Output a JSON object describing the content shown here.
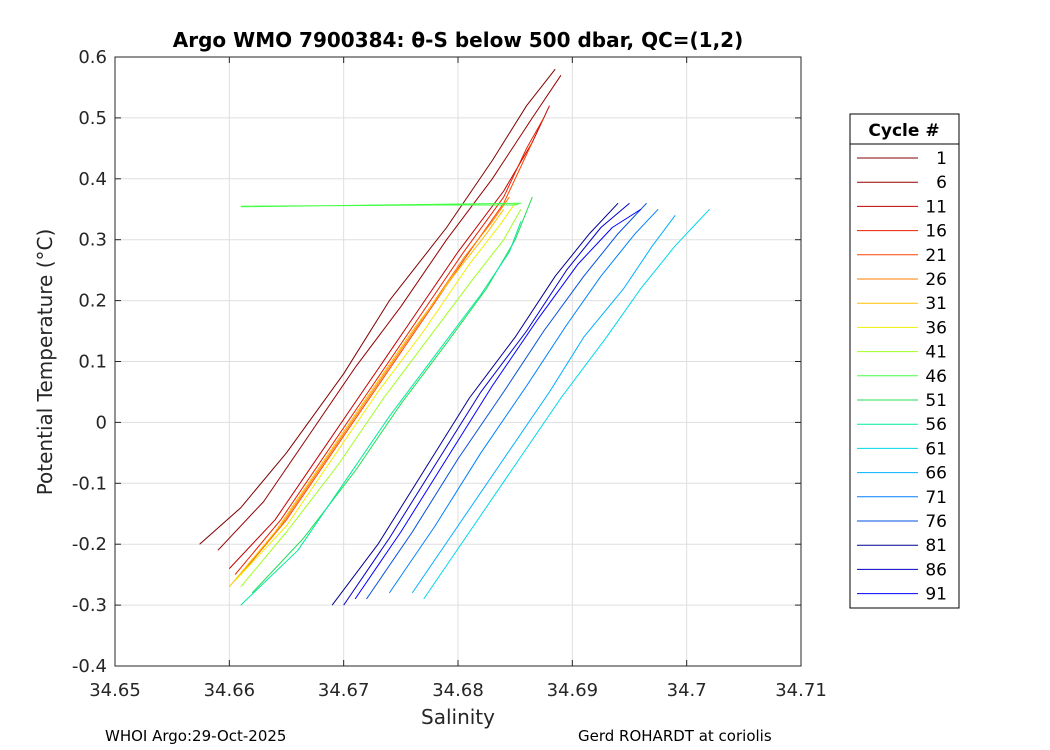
{
  "chart_data": {
    "type": "line",
    "title": "Argo WMO 7900384: θ-S below 500 dbar,  QC=(1,2)",
    "xlabel": "Salinity",
    "ylabel": "Potential Temperature (°C)",
    "xlim": [
      34.65,
      34.71
    ],
    "ylim": [
      -0.4,
      0.6
    ],
    "x_ticks": [
      34.65,
      34.66,
      34.67,
      34.68,
      34.69,
      34.7,
      34.71
    ],
    "x_tick_labels": [
      "34.65",
      "34.66",
      "34.67",
      "34.68",
      "34.69",
      "34.7",
      "34.71"
    ],
    "y_ticks": [
      -0.4,
      -0.3,
      -0.2,
      -0.1,
      0,
      0.1,
      0.2,
      0.3,
      0.4,
      0.5,
      0.6
    ],
    "y_tick_labels": [
      "-0.4",
      "-0.3",
      "-0.2",
      "-0.1",
      "0",
      "0.1",
      "0.2",
      "0.3",
      "0.4",
      "0.5",
      "0.6"
    ],
    "grid": true,
    "legend_placement": "outside-right",
    "legend_title": "Cycle #",
    "series": [
      {
        "name": "1",
        "color": "#7f0000",
        "points": [
          [
            34.6574,
            -0.2
          ],
          [
            34.661,
            -0.14
          ],
          [
            34.665,
            -0.05
          ],
          [
            34.67,
            0.08
          ],
          [
            34.674,
            0.2
          ],
          [
            34.679,
            0.32
          ],
          [
            34.683,
            0.43
          ],
          [
            34.686,
            0.52
          ],
          [
            34.6885,
            0.58
          ]
        ]
      },
      {
        "name": "6",
        "color": "#950000",
        "points": [
          [
            34.659,
            -0.21
          ],
          [
            34.663,
            -0.13
          ],
          [
            34.667,
            -0.02
          ],
          [
            34.671,
            0.09
          ],
          [
            34.675,
            0.19
          ],
          [
            34.679,
            0.3
          ],
          [
            34.683,
            0.4
          ],
          [
            34.6865,
            0.5
          ],
          [
            34.689,
            0.57
          ]
        ]
      },
      {
        "name": "11",
        "color": "#c00000",
        "points": [
          [
            34.66,
            -0.24
          ],
          [
            34.664,
            -0.16
          ],
          [
            34.668,
            -0.05
          ],
          [
            34.672,
            0.06
          ],
          [
            34.676,
            0.17
          ],
          [
            34.68,
            0.28
          ],
          [
            34.684,
            0.38
          ],
          [
            34.6865,
            0.46
          ],
          [
            34.688,
            0.52
          ]
        ]
      },
      {
        "name": "16",
        "color": "#e82000",
        "points": [
          [
            34.6605,
            -0.25
          ],
          [
            34.6645,
            -0.16
          ],
          [
            34.6685,
            -0.05
          ],
          [
            34.6725,
            0.06
          ],
          [
            34.6765,
            0.17
          ],
          [
            34.6805,
            0.28
          ],
          [
            34.684,
            0.37
          ],
          [
            34.686,
            0.45
          ],
          [
            34.6875,
            0.5
          ]
        ]
      },
      {
        "name": "21",
        "color": "#ff4500",
        "points": [
          [
            34.661,
            -0.25
          ],
          [
            34.665,
            -0.16
          ],
          [
            34.669,
            -0.05
          ],
          [
            34.673,
            0.06
          ],
          [
            34.677,
            0.17
          ],
          [
            34.681,
            0.28
          ],
          [
            34.684,
            0.36
          ],
          [
            34.6855,
            0.42
          ],
          [
            34.6865,
            0.46
          ]
        ]
      },
      {
        "name": "26",
        "color": "#ff7f00",
        "points": [
          [
            34.6605,
            -0.26
          ],
          [
            34.6645,
            -0.17
          ],
          [
            34.6685,
            -0.06
          ],
          [
            34.6725,
            0.05
          ],
          [
            34.6765,
            0.16
          ],
          [
            34.6805,
            0.27
          ],
          [
            34.683,
            0.33
          ],
          [
            34.6845,
            0.37
          ]
        ]
      },
      {
        "name": "31",
        "color": "#ffbf00",
        "points": [
          [
            34.66,
            -0.27
          ],
          [
            34.664,
            -0.18
          ],
          [
            34.668,
            -0.07
          ],
          [
            34.672,
            0.04
          ],
          [
            34.676,
            0.15
          ],
          [
            34.68,
            0.25
          ],
          [
            34.6825,
            0.31
          ],
          [
            34.684,
            0.35
          ]
        ]
      },
      {
        "name": "36",
        "color": "#f0f000",
        "points": [
          [
            34.6605,
            -0.26
          ],
          [
            34.665,
            -0.17
          ],
          [
            34.669,
            -0.06
          ],
          [
            34.673,
            0.05
          ],
          [
            34.677,
            0.15
          ],
          [
            34.681,
            0.26
          ],
          [
            34.6835,
            0.32
          ],
          [
            34.685,
            0.36
          ]
        ]
      },
      {
        "name": "41",
        "color": "#a0ff20",
        "points": [
          [
            34.661,
            -0.27
          ],
          [
            34.665,
            -0.18
          ],
          [
            34.6695,
            -0.07
          ],
          [
            34.6735,
            0.04
          ],
          [
            34.6775,
            0.14
          ],
          [
            34.6815,
            0.24
          ],
          [
            34.684,
            0.3
          ],
          [
            34.6855,
            0.35
          ]
        ]
      },
      {
        "name": "46",
        "color": "#40ff40",
        "points": [
          [
            34.661,
            0.355
          ],
          [
            34.67,
            0.356
          ],
          [
            34.678,
            0.357
          ],
          [
            34.685,
            0.357
          ],
          [
            34.6855,
            0.36
          ],
          [
            34.661,
            0.354
          ]
        ]
      },
      {
        "name": "51",
        "color": "#20e050",
        "points": [
          [
            34.662,
            -0.28
          ],
          [
            34.6665,
            -0.19
          ],
          [
            34.671,
            -0.08
          ],
          [
            34.675,
            0.03
          ],
          [
            34.679,
            0.13
          ],
          [
            34.6825,
            0.22
          ],
          [
            34.685,
            0.3
          ],
          [
            34.6865,
            0.37
          ]
        ]
      },
      {
        "name": "56",
        "color": "#00e8a0",
        "points": [
          [
            34.661,
            -0.3
          ],
          [
            34.666,
            -0.21
          ],
          [
            34.67,
            -0.1
          ],
          [
            34.674,
            0.01
          ],
          [
            34.678,
            0.11
          ],
          [
            34.682,
            0.21
          ],
          [
            34.6845,
            0.28
          ],
          [
            34.6855,
            0.33
          ]
        ]
      },
      {
        "name": "61",
        "color": "#00d8e8",
        "points": [
          [
            34.677,
            -0.29
          ],
          [
            34.681,
            -0.18
          ],
          [
            34.685,
            -0.07
          ],
          [
            34.689,
            0.04
          ],
          [
            34.693,
            0.14
          ],
          [
            34.696,
            0.22
          ],
          [
            34.699,
            0.29
          ],
          [
            34.7005,
            0.32
          ],
          [
            34.702,
            0.35
          ]
        ]
      },
      {
        "name": "66",
        "color": "#00b0ff",
        "points": [
          [
            34.676,
            -0.28
          ],
          [
            34.68,
            -0.17
          ],
          [
            34.684,
            -0.06
          ],
          [
            34.688,
            0.05
          ],
          [
            34.691,
            0.14
          ],
          [
            34.6945,
            0.22
          ],
          [
            34.697,
            0.29
          ],
          [
            34.699,
            0.34
          ]
        ]
      },
      {
        "name": "71",
        "color": "#0080ff",
        "points": [
          [
            34.674,
            -0.28
          ],
          [
            34.678,
            -0.17
          ],
          [
            34.682,
            -0.05
          ],
          [
            34.686,
            0.06
          ],
          [
            34.6895,
            0.16
          ],
          [
            34.6925,
            0.24
          ],
          [
            34.6955,
            0.31
          ],
          [
            34.6975,
            0.35
          ]
        ]
      },
      {
        "name": "76",
        "color": "#0050e0",
        "points": [
          [
            34.672,
            -0.29
          ],
          [
            34.676,
            -0.18
          ],
          [
            34.68,
            -0.06
          ],
          [
            34.684,
            0.05
          ],
          [
            34.6875,
            0.15
          ],
          [
            34.691,
            0.24
          ],
          [
            34.694,
            0.31
          ],
          [
            34.6965,
            0.36
          ]
        ]
      },
      {
        "name": "81",
        "color": "#000090",
        "points": [
          [
            34.669,
            -0.3
          ],
          [
            34.673,
            -0.2
          ],
          [
            34.677,
            -0.08
          ],
          [
            34.681,
            0.04
          ],
          [
            34.685,
            0.14
          ],
          [
            34.6885,
            0.24
          ],
          [
            34.6915,
            0.31
          ],
          [
            34.694,
            0.36
          ]
        ]
      },
      {
        "name": "86",
        "color": "#0000c8",
        "points": [
          [
            34.67,
            -0.3
          ],
          [
            34.674,
            -0.19
          ],
          [
            34.678,
            -0.07
          ],
          [
            34.682,
            0.05
          ],
          [
            34.686,
            0.15
          ],
          [
            34.6895,
            0.25
          ],
          [
            34.6925,
            0.32
          ],
          [
            34.695,
            0.36
          ]
        ]
      },
      {
        "name": "91",
        "color": "#0000ff",
        "points": [
          [
            34.671,
            -0.29
          ],
          [
            34.675,
            -0.18
          ],
          [
            34.679,
            -0.06
          ],
          [
            34.683,
            0.06
          ],
          [
            34.687,
            0.17
          ],
          [
            34.6905,
            0.26
          ],
          [
            34.6935,
            0.32
          ],
          [
            34.696,
            0.35
          ]
        ]
      }
    ]
  },
  "footer": {
    "left": "WHOI Argo:29-Oct-2025",
    "right": "Gerd ROHARDT at coriolis"
  }
}
